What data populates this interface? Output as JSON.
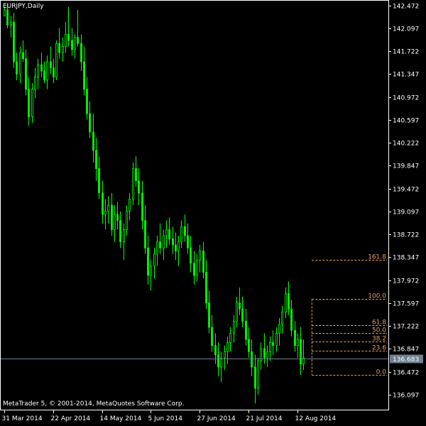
{
  "window": {
    "symbol_title": "EURJPY,Daily",
    "copyright": "MetaTrader 5, © 2001-2014, MetaQuotes Software Corp."
  },
  "colors": {
    "background": "#000000",
    "axis": "#ffffff",
    "candle": "#00ff00",
    "fib": "#e8a060",
    "price_line": "#708090",
    "price_label_bg": "#708090"
  },
  "chart_data": {
    "type": "candlestick",
    "ylim": [
      135.85,
      142.55
    ],
    "y_ticks": [
      "142.472",
      "142.097",
      "141.722",
      "141.347",
      "140.972",
      "140.597",
      "140.222",
      "139.847",
      "139.472",
      "139.097",
      "138.722",
      "138.347",
      "137.972",
      "137.597",
      "137.222",
      "136.847",
      "136.472",
      "136.097"
    ],
    "x_ticks": [
      {
        "label": "31 Mar 2014",
        "index": 0
      },
      {
        "label": "22 Apr 2014",
        "index": 16
      },
      {
        "label": "14 May 2014",
        "index": 32
      },
      {
        "label": "5 Jun 2014",
        "index": 48
      },
      {
        "label": "27 Jun 2014",
        "index": 64
      },
      {
        "label": "21 Jul 2014",
        "index": 80
      },
      {
        "label": "12 Aug 2014",
        "index": 96
      }
    ],
    "current_price": "136.683",
    "current_price_value": 136.683,
    "fib_levels": [
      {
        "label": "161.8",
        "price": 138.3
      },
      {
        "label": "100.0",
        "price": 137.66
      },
      {
        "label": "61.8",
        "price": 137.24
      },
      {
        "label": "50.0",
        "price": 137.11
      },
      {
        "label": "38.2",
        "price": 136.97
      },
      {
        "label": "23.6",
        "price": 136.81
      },
      {
        "label": "0.0",
        "price": 136.42
      }
    ],
    "fib_start_index": 101,
    "candles": [
      [
        142.3,
        142.45,
        142.3,
        142.4
      ],
      [
        142.4,
        142.5,
        142.1,
        142.15
      ],
      [
        142.15,
        142.3,
        141.95,
        142.2
      ],
      [
        142.2,
        142.35,
        141.45,
        141.55
      ],
      [
        141.55,
        141.7,
        141.25,
        141.35
      ],
      [
        141.35,
        141.8,
        141.2,
        141.7
      ],
      [
        141.7,
        141.9,
        141.55,
        141.6
      ],
      [
        141.6,
        141.75,
        141.0,
        141.1
      ],
      [
        141.1,
        141.3,
        140.5,
        140.65
      ],
      [
        140.65,
        141.2,
        140.55,
        141.1
      ],
      [
        141.1,
        141.45,
        140.95,
        141.3
      ],
      [
        141.3,
        141.6,
        141.1,
        141.5
      ],
      [
        141.5,
        141.7,
        141.3,
        141.4
      ],
      [
        141.4,
        141.55,
        141.2,
        141.25
      ],
      [
        141.25,
        141.65,
        141.1,
        141.55
      ],
      [
        141.55,
        141.8,
        141.35,
        141.45
      ],
      [
        141.45,
        141.6,
        141.2,
        141.3
      ],
      [
        141.3,
        141.9,
        141.25,
        141.85
      ],
      [
        141.85,
        142.1,
        141.6,
        141.7
      ],
      [
        141.7,
        141.95,
        141.55,
        141.8
      ],
      [
        141.8,
        142.2,
        141.7,
        142.0
      ],
      [
        142.0,
        142.45,
        141.8,
        141.9
      ],
      [
        141.9,
        142.1,
        141.65,
        141.75
      ],
      [
        141.75,
        142.0,
        141.6,
        141.95
      ],
      [
        141.95,
        142.4,
        141.8,
        141.85
      ],
      [
        141.85,
        142.0,
        141.4,
        141.55
      ],
      [
        141.55,
        141.8,
        141.0,
        141.1
      ],
      [
        141.1,
        141.3,
        140.6,
        140.7
      ],
      [
        140.7,
        140.9,
        140.3,
        140.4
      ],
      [
        140.4,
        140.7,
        139.9,
        140.1
      ],
      [
        140.1,
        140.3,
        139.6,
        139.8
      ],
      [
        139.8,
        140.0,
        139.3,
        139.4
      ],
      [
        139.4,
        139.6,
        138.9,
        139.05
      ],
      [
        139.05,
        139.3,
        138.8,
        139.1
      ],
      [
        139.1,
        139.35,
        138.9,
        139.2
      ],
      [
        139.2,
        139.4,
        138.7,
        138.8
      ],
      [
        138.8,
        139.2,
        138.6,
        139.05
      ],
      [
        139.05,
        139.25,
        138.8,
        138.95
      ],
      [
        138.95,
        139.1,
        138.5,
        138.6
      ],
      [
        138.6,
        138.9,
        138.3,
        138.8
      ],
      [
        138.8,
        139.2,
        138.7,
        139.1
      ],
      [
        139.1,
        139.4,
        138.95,
        139.3
      ],
      [
        139.3,
        139.9,
        139.2,
        139.8
      ],
      [
        139.8,
        140.0,
        139.5,
        139.6
      ],
      [
        139.6,
        139.8,
        139.2,
        139.4
      ],
      [
        139.4,
        139.6,
        138.8,
        138.95
      ],
      [
        138.95,
        139.2,
        138.4,
        138.5
      ],
      [
        138.5,
        138.7,
        137.9,
        138.05
      ],
      [
        138.05,
        138.3,
        137.8,
        138.2
      ],
      [
        138.2,
        138.5,
        138.0,
        138.4
      ],
      [
        138.4,
        138.7,
        138.2,
        138.6
      ],
      [
        138.6,
        138.9,
        138.4,
        138.5
      ],
      [
        138.5,
        138.8,
        138.3,
        138.7
      ],
      [
        138.7,
        138.95,
        138.5,
        138.8
      ],
      [
        138.8,
        139.0,
        138.55,
        138.65
      ],
      [
        138.65,
        138.85,
        138.4,
        138.55
      ],
      [
        138.55,
        138.75,
        138.3,
        138.45
      ],
      [
        138.45,
        138.7,
        138.2,
        138.6
      ],
      [
        138.6,
        138.95,
        138.5,
        138.85
      ],
      [
        138.85,
        139.05,
        138.6,
        138.7
      ],
      [
        138.7,
        138.9,
        138.4,
        138.5
      ],
      [
        138.5,
        138.7,
        138.1,
        138.25
      ],
      [
        138.25,
        138.45,
        137.9,
        138.05
      ],
      [
        138.05,
        138.4,
        137.95,
        138.3
      ],
      [
        138.3,
        138.55,
        138.1,
        138.45
      ],
      [
        138.45,
        138.6,
        138.0,
        138.1
      ],
      [
        138.1,
        138.3,
        137.5,
        137.6
      ],
      [
        137.6,
        137.8,
        137.1,
        137.2
      ],
      [
        137.2,
        137.4,
        136.8,
        136.9
      ],
      [
        136.9,
        137.1,
        136.6,
        136.75
      ],
      [
        136.75,
        136.95,
        136.4,
        136.55
      ],
      [
        136.55,
        136.8,
        136.3,
        136.7
      ],
      [
        136.7,
        136.9,
        136.5,
        136.8
      ],
      [
        136.8,
        137.05,
        136.6,
        136.95
      ],
      [
        136.95,
        137.2,
        136.8,
        137.1
      ],
      [
        137.1,
        137.4,
        136.95,
        137.3
      ],
      [
        137.3,
        137.7,
        137.2,
        137.6
      ],
      [
        137.6,
        137.85,
        137.4,
        137.5
      ],
      [
        137.5,
        137.7,
        137.2,
        137.3
      ],
      [
        137.3,
        137.5,
        136.9,
        137.0
      ],
      [
        137.0,
        137.2,
        136.7,
        136.8
      ],
      [
        136.8,
        137.0,
        136.4,
        136.55
      ],
      [
        136.55,
        136.75,
        135.95,
        136.2
      ],
      [
        136.2,
        136.7,
        136.1,
        136.65
      ],
      [
        136.65,
        136.95,
        136.5,
        136.85
      ],
      [
        136.85,
        137.1,
        136.6,
        136.7
      ],
      [
        136.7,
        136.9,
        136.55,
        136.8
      ],
      [
        136.8,
        137.05,
        136.65,
        136.95
      ],
      [
        136.95,
        137.15,
        136.75,
        136.9
      ],
      [
        136.9,
        137.2,
        136.8,
        137.1
      ],
      [
        137.1,
        137.35,
        136.9,
        137.25
      ],
      [
        137.25,
        137.55,
        137.1,
        137.45
      ],
      [
        137.45,
        137.85,
        137.35,
        137.75
      ],
      [
        137.75,
        137.95,
        137.4,
        137.5
      ],
      [
        137.5,
        137.65,
        137.05,
        137.15
      ],
      [
        137.15,
        137.3,
        136.8,
        136.9
      ],
      [
        136.9,
        137.1,
        136.7,
        137.0
      ],
      [
        137.0,
        137.2,
        136.42,
        136.6
      ],
      [
        136.6,
        137.0,
        136.5,
        136.7
      ]
    ]
  }
}
